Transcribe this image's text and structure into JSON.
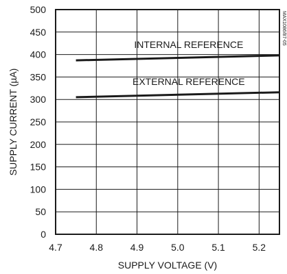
{
  "chart_data": {
    "type": "line",
    "xlabel": "SUPPLY VOLTAGE (V)",
    "ylabel": "SUPPLY CURRENT (µA)",
    "xlim": [
      4.7,
      5.25
    ],
    "ylim": [
      0,
      500
    ],
    "xticks": [
      "4.7",
      "4.8",
      "4.9",
      "5.0",
      "5.1",
      "5.2"
    ],
    "yticks": [
      "0",
      "50",
      "100",
      "150",
      "200",
      "250",
      "300",
      "350",
      "400",
      "450",
      "500"
    ],
    "grid": true,
    "series": [
      {
        "name": "INTERNAL REFERENCE",
        "x": [
          4.75,
          5.25
        ],
        "y": [
          387,
          398
        ]
      },
      {
        "name": "EXTERNAL REFERENCE",
        "x": [
          4.75,
          5.25
        ],
        "y": [
          305,
          316
        ]
      }
    ],
    "annotations": [
      {
        "text": "MAX1086/87-05"
      }
    ]
  }
}
